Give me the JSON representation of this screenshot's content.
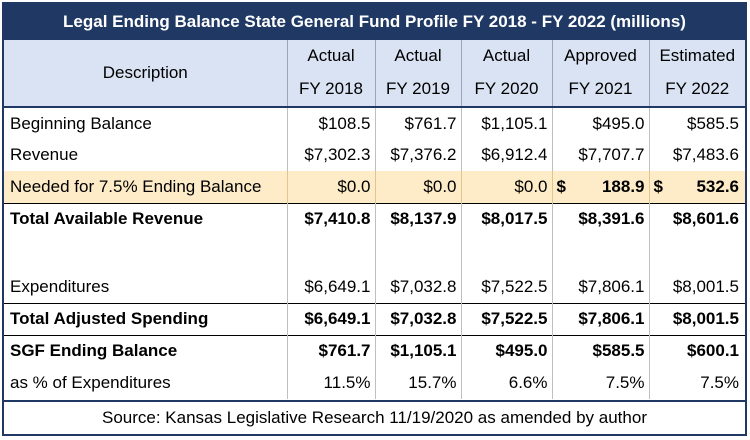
{
  "title": "Legal Ending Balance State General Fund Profile FY 2018 - FY 2022 (millions)",
  "header": {
    "description": "Description",
    "columns": [
      {
        "top": "Actual",
        "bottom": "FY 2018"
      },
      {
        "top": "Actual",
        "bottom": "FY 2019"
      },
      {
        "top": "Actual",
        "bottom": "FY 2020"
      },
      {
        "top": "Approved",
        "bottom": "FY 2021"
      },
      {
        "top": "Estimated",
        "bottom": "FY 2022"
      }
    ]
  },
  "rows": {
    "beginning": {
      "label": "Beginning Balance",
      "values": [
        "$108.5",
        "$761.7",
        "$1,105.1",
        "$495.0",
        "$585.5"
      ]
    },
    "revenue": {
      "label": "Revenue",
      "values": [
        "$7,302.3",
        "$7,376.2",
        "$6,912.4",
        "$7,707.7",
        "$7,483.6"
      ]
    },
    "needed": {
      "label": "Needed for 7.5% Ending Balance",
      "values": [
        "$0.0",
        "$0.0",
        "$0.0"
      ],
      "acct": [
        {
          "sym": "$",
          "amt": "188.9"
        },
        {
          "sym": "$",
          "amt": "532.6"
        }
      ]
    },
    "total_revenue": {
      "label": "Total Available Revenue",
      "values": [
        "$7,410.8",
        "$8,137.9",
        "$8,017.5",
        "$8,391.6",
        "$8,601.6"
      ]
    },
    "expenditures": {
      "label": "Expenditures",
      "values": [
        "$6,649.1",
        "$7,032.8",
        "$7,522.5",
        "$7,806.1",
        "$8,001.5"
      ]
    },
    "total_spending": {
      "label": "Total Adjusted Spending",
      "values": [
        "$6,649.1",
        "$7,032.8",
        "$7,522.5",
        "$7,806.1",
        "$8,001.5"
      ]
    },
    "ending": {
      "label": "SGF Ending Balance",
      "values": [
        "$761.7",
        "$1,105.1",
        "$495.0",
        "$585.5",
        "$600.1"
      ]
    },
    "pct": {
      "label": "as % of Expenditures",
      "values": [
        "11.5%",
        "15.7%",
        "6.6%",
        "7.5%",
        "7.5%"
      ]
    }
  },
  "source": "Source: Kansas Legislative Research 11/19/2020 as amended by author",
  "colors": {
    "navy": "#1f3864",
    "header_fill": "#dae3f3",
    "highlight_fill": "#fdecc7"
  }
}
